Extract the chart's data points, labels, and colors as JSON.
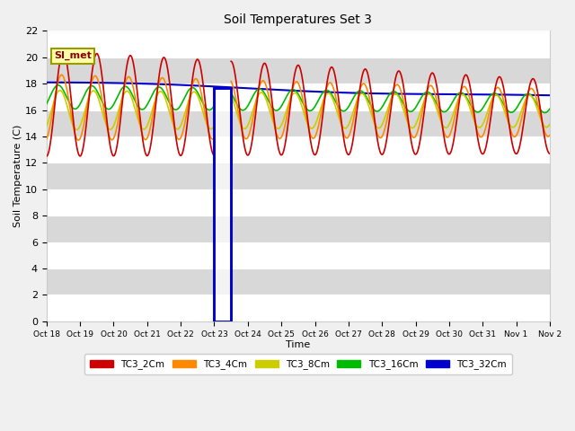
{
  "title": "Soil Temperatures Set 3",
  "xlabel": "Time",
  "ylabel": "Soil Temperature (C)",
  "ylim": [
    0,
    22
  ],
  "fig_bg": "#f0f0f0",
  "plot_bg": "#d8d8d8",
  "series_colors": {
    "TC3_2Cm": "#cc0000",
    "TC3_4Cm": "#ff8800",
    "TC3_8Cm": "#cccc00",
    "TC3_16Cm": "#00bb00",
    "TC3_32Cm": "#0000cc"
  },
  "legend_labels": [
    "TC3_2Cm",
    "TC3_4Cm",
    "TC3_8Cm",
    "TC3_16Cm",
    "TC3_32Cm"
  ],
  "tick_labels": [
    "Oct 18",
    "Oct 19",
    "Oct 20",
    "Oct 21",
    "Oct 22",
    "Oct 23",
    "Oct 24",
    "Oct 25",
    "Oct 26",
    "Oct 27",
    "Oct 28",
    "Oct 29",
    "Oct 30",
    "Oct 31",
    "Nov 1",
    "Nov 2"
  ],
  "yticks": [
    0,
    2,
    4,
    6,
    8,
    10,
    12,
    14,
    16,
    18,
    20,
    22
  ],
  "si_met_label": "SI_met",
  "rect_color": "#0000cc"
}
